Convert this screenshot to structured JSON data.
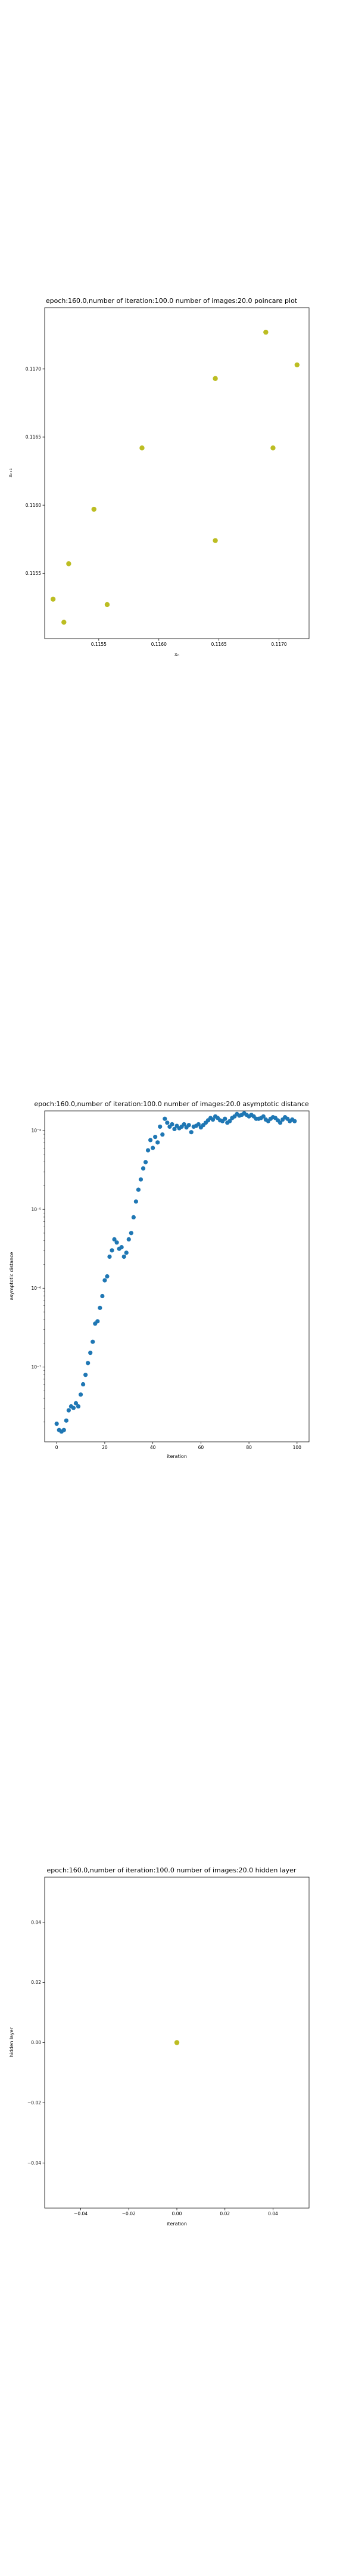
{
  "chart_data": [
    {
      "type": "scatter",
      "title": "epoch:160.0,number of iteration:100.0 number of images:20.0 poincare plot",
      "xlabel": "xₙ",
      "ylabel": "xₙ₊₁",
      "xlim": [
        0.11505,
        0.11725
      ],
      "ylim": [
        0.11502,
        0.11745
      ],
      "xticks": [
        0.1155,
        0.116,
        0.1165,
        0.117
      ],
      "xtick_labels": [
        "0.1155",
        "0.1160",
        "0.1165",
        "0.1170"
      ],
      "yticks": [
        0.1155,
        0.116,
        0.1165,
        0.117
      ],
      "ytick_labels": [
        "0.1155",
        "0.1160",
        "0.1165",
        "0.1170"
      ],
      "color": "#bcbd22",
      "points": [
        {
          "x": 0.11512,
          "y": 0.11531
        },
        {
          "x": 0.11521,
          "y": 0.11514
        },
        {
          "x": 0.11525,
          "y": 0.11557
        },
        {
          "x": 0.11546,
          "y": 0.11597
        },
        {
          "x": 0.11557,
          "y": 0.11527
        },
        {
          "x": 0.11586,
          "y": 0.11642
        },
        {
          "x": 0.11647,
          "y": 0.11574
        },
        {
          "x": 0.11647,
          "y": 0.11693
        },
        {
          "x": 0.11689,
          "y": 0.11727
        },
        {
          "x": 0.11695,
          "y": 0.11642
        },
        {
          "x": 0.11715,
          "y": 0.11703
        }
      ]
    },
    {
      "type": "scatter",
      "title": "epoch:160.0,number of iteration:100.0  number of images:20.0 asymptotic distance",
      "xlabel": "iteration",
      "ylabel": "asymptotic distance",
      "yscale": "log",
      "xlim": [
        -5,
        105
      ],
      "ylim_log10": [
        -7.95,
        -3.75
      ],
      "xticks": [
        0,
        20,
        40,
        60,
        80,
        100
      ],
      "xtick_labels": [
        "0",
        "20",
        "40",
        "60",
        "80",
        "100"
      ],
      "yticks_log10": [
        -7,
        -6,
        -5,
        -4
      ],
      "ytick_labels": [
        "10⁻⁷",
        "10⁻⁶",
        "10⁻⁵",
        "10⁻⁴"
      ],
      "color": "#1f77b4",
      "x": [
        0,
        1,
        2,
        3,
        4,
        5,
        6,
        7,
        8,
        9,
        10,
        11,
        12,
        13,
        14,
        15,
        16,
        17,
        18,
        19,
        20,
        21,
        22,
        23,
        24,
        25,
        26,
        27,
        28,
        29,
        30,
        31,
        32,
        33,
        34,
        35,
        36,
        37,
        38,
        39,
        40,
        41,
        42,
        43,
        44,
        45,
        46,
        47,
        48,
        49,
        50,
        51,
        52,
        53,
        54,
        55,
        56,
        57,
        58,
        59,
        60,
        61,
        62,
        63,
        64,
        65,
        66,
        67,
        68,
        69,
        70,
        71,
        72,
        73,
        74,
        75,
        76,
        77,
        78,
        79,
        80,
        81,
        82,
        83,
        84,
        85,
        86,
        87,
        88,
        89,
        90,
        91,
        92,
        93,
        94,
        95,
        96,
        97,
        98,
        99
      ],
      "log10_y": [
        -7.72,
        -7.8,
        -7.82,
        -7.8,
        -7.68,
        -7.55,
        -7.5,
        -7.52,
        -7.46,
        -7.5,
        -7.35,
        -7.22,
        -7.1,
        -6.95,
        -6.82,
        -6.68,
        -6.45,
        -6.42,
        -6.25,
        -6.1,
        -5.9,
        -5.85,
        -5.6,
        -5.52,
        -5.38,
        -5.42,
        -5.5,
        -5.48,
        -5.6,
        -5.55,
        -5.38,
        -5.3,
        -5.1,
        -4.9,
        -4.75,
        -4.62,
        -4.48,
        -4.4,
        -4.25,
        -4.12,
        -4.22,
        -4.08,
        -4.15,
        -3.95,
        -4.05,
        -3.85,
        -3.9,
        -3.95,
        -3.92,
        -3.98,
        -3.94,
        -3.97,
        -3.95,
        -3.92,
        -3.96,
        -3.93,
        -4.02,
        -3.95,
        -3.94,
        -3.92,
        -3.96,
        -3.93,
        -3.9,
        -3.87,
        -3.84,
        -3.86,
        -3.82,
        -3.84,
        -3.87,
        -3.88,
        -3.85,
        -3.9,
        -3.88,
        -3.84,
        -3.82,
        -3.79,
        -3.81,
        -3.8,
        -3.78,
        -3.8,
        -3.82,
        -3.8,
        -3.82,
        -3.85,
        -3.85,
        -3.84,
        -3.82,
        -3.86,
        -3.88,
        -3.85,
        -3.83,
        -3.84,
        -3.87,
        -3.9,
        -3.86,
        -3.83,
        -3.85,
        -3.88,
        -3.86,
        -3.88
      ]
    },
    {
      "type": "scatter",
      "title": "epoch:160.0,number of iteration:100.0  number of images:20.0 hidden layer",
      "xlabel": "iteration",
      "ylabel": "hidden layer",
      "xlim": [
        -0.055,
        0.055
      ],
      "ylim": [
        -0.055,
        0.055
      ],
      "xticks": [
        -0.04,
        -0.02,
        0.0,
        0.02,
        0.04
      ],
      "xtick_labels": [
        "−0.04",
        "−0.02",
        "0.00",
        "0.02",
        "0.04"
      ],
      "yticks": [
        -0.04,
        -0.02,
        0.0,
        0.02,
        0.04
      ],
      "ytick_labels": [
        "−0.04",
        "−0.02",
        "0.00",
        "0.02",
        "0.04"
      ],
      "color": "#bcbd22",
      "points": [
        {
          "x": 0.0,
          "y": 0.0
        }
      ]
    }
  ]
}
